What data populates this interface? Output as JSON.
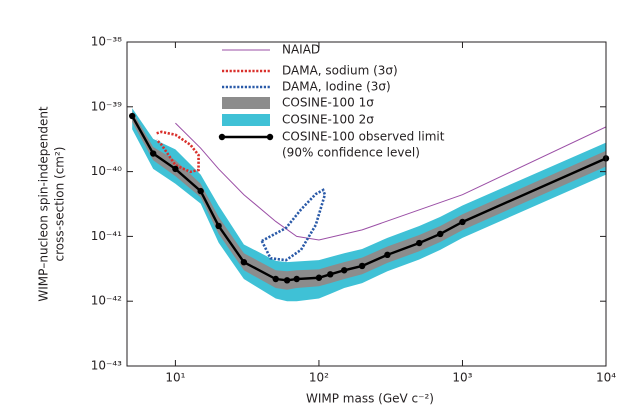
{
  "chart_data": {
    "type": "line",
    "xlabel": "WIMP mass (GeV c⁻²)",
    "ylabel": [
      "WIMP–nucleon spin-independent",
      "cross-section (cm²)"
    ],
    "xscale": "log",
    "yscale": "log",
    "xlim": [
      4.6,
      10000
    ],
    "ylim": [
      1e-43,
      1e-38
    ],
    "xticks": [
      {
        "value": 10,
        "label": "10¹"
      },
      {
        "value": 100,
        "label": "10²"
      },
      {
        "value": 1000,
        "label": "10³"
      },
      {
        "value": 10000,
        "label": "10⁴"
      }
    ],
    "yticks": [
      {
        "value": 1e-43,
        "label": "10⁻⁴³"
      },
      {
        "value": 1e-42,
        "label": "10⁻⁴²"
      },
      {
        "value": 1e-41,
        "label": "10⁻⁴¹"
      },
      {
        "value": 1e-40,
        "label": "10⁻⁴⁰"
      },
      {
        "value": 1e-39,
        "label": "10⁻³⁹"
      },
      {
        "value": 1e-38,
        "label": "10⁻³⁸"
      }
    ],
    "legend_note": "(90% confidence level)",
    "series": [
      {
        "name": "NAIAD",
        "color": "#9b4fa6",
        "style": "line",
        "x": [
          10,
          15,
          20,
          30,
          50,
          70,
          100,
          200,
          1000,
          10000
        ],
        "values": [
          5.6e-40,
          2.3e-40,
          1.1e-40,
          4.4e-41,
          1.7e-41,
          1e-41,
          8.8e-42,
          1.26e-41,
          4.4e-41,
          4.9e-40
        ]
      },
      {
        "name": "DAMA, sodium (3σ)",
        "color": "#d9302c",
        "style": "dotted",
        "x": [
          7.4,
          8,
          10,
          12.7,
          14.5,
          14.5,
          12.7,
          10,
          8,
          7.4
        ],
        "values": [
          3.9e-40,
          4.1e-40,
          3.7e-40,
          2.6e-40,
          1.8e-40,
          1.06e-40,
          9.9e-41,
          1.26e-40,
          2.6e-40,
          3.1e-40
        ]
      },
      {
        "name": "DAMA, Iodine (3σ)",
        "color": "#2a5aa8",
        "style": "dotted",
        "x": [
          40,
          46,
          59,
          75,
          95,
          110,
          107,
          95,
          75,
          59,
          40
        ],
        "values": [
          8.5e-42,
          4.6e-42,
          4.3e-42,
          6.2e-42,
          1.5e-41,
          4.4e-41,
          5.2e-41,
          4.5e-41,
          2.6e-41,
          1.35e-41,
          8.5e-42
        ]
      },
      {
        "name": "COSINE-100 1σ",
        "color": "#8c8c8c",
        "style": "band",
        "x": [
          5,
          7,
          10,
          15,
          20,
          30,
          50,
          60,
          70,
          100,
          120,
          150,
          200,
          300,
          500,
          700,
          1000,
          10000
        ],
        "lower": [
          5.8e-40,
          1.5e-40,
          8.5e-41,
          4e-41,
          1.1e-41,
          3e-42,
          1.6e-42,
          1.5e-42,
          1.6e-42,
          1.7e-42,
          1.9e-42,
          2.2e-42,
          2.6e-42,
          3.9e-42,
          5.9e-42,
          8.2e-42,
          1.25e-41,
          1.2e-40
        ],
        "upper": [
          8.5e-40,
          2.4e-40,
          1.5e-40,
          6.5e-41,
          2e-41,
          5.5e-42,
          3e-42,
          2.9e-42,
          3e-42,
          3.1e-42,
          3.5e-42,
          4e-42,
          4.7e-42,
          7e-42,
          1.05e-41,
          1.45e-41,
          2.2e-41,
          2.1e-40
        ]
      },
      {
        "name": "COSINE-100 2σ",
        "color": "#3fc1d6",
        "style": "band",
        "x": [
          5,
          7,
          10,
          15,
          20,
          30,
          50,
          60,
          70,
          100,
          120,
          150,
          200,
          300,
          500,
          700,
          1000,
          10000
        ],
        "lower": [
          4.5e-40,
          1.1e-40,
          6.5e-41,
          3.2e-41,
          8e-42,
          2.2e-42,
          1.1e-42,
          1e-42,
          1e-42,
          1.1e-42,
          1.3e-42,
          1.6e-42,
          1.9e-42,
          2.9e-42,
          4.4e-42,
          6.2e-42,
          9.5e-42,
          9e-41
        ],
        "upper": [
          9.5e-40,
          3.2e-40,
          2.2e-40,
          9e-41,
          3e-41,
          7.5e-42,
          4.2e-42,
          4e-42,
          4.1e-42,
          4.3e-42,
          4.8e-42,
          5.5e-42,
          6.4e-42,
          9.5e-42,
          1.45e-41,
          2e-41,
          3e-41,
          2.8e-40
        ]
      },
      {
        "name": "COSINE-100 observed limit",
        "color": "#000000",
        "style": "line-markers",
        "x": [
          5,
          7,
          10,
          15,
          20,
          30,
          50,
          60,
          70,
          100,
          120,
          150,
          200,
          300,
          500,
          700,
          1000,
          10000
        ],
        "values": [
          7.2e-40,
          1.9e-40,
          1.1e-40,
          5e-41,
          1.45e-41,
          4e-42,
          2.2e-42,
          2.1e-42,
          2.2e-42,
          2.3e-42,
          2.6e-42,
          3e-42,
          3.5e-42,
          5.2e-42,
          7.9e-42,
          1.09e-41,
          1.67e-41,
          1.6e-40
        ]
      }
    ]
  }
}
